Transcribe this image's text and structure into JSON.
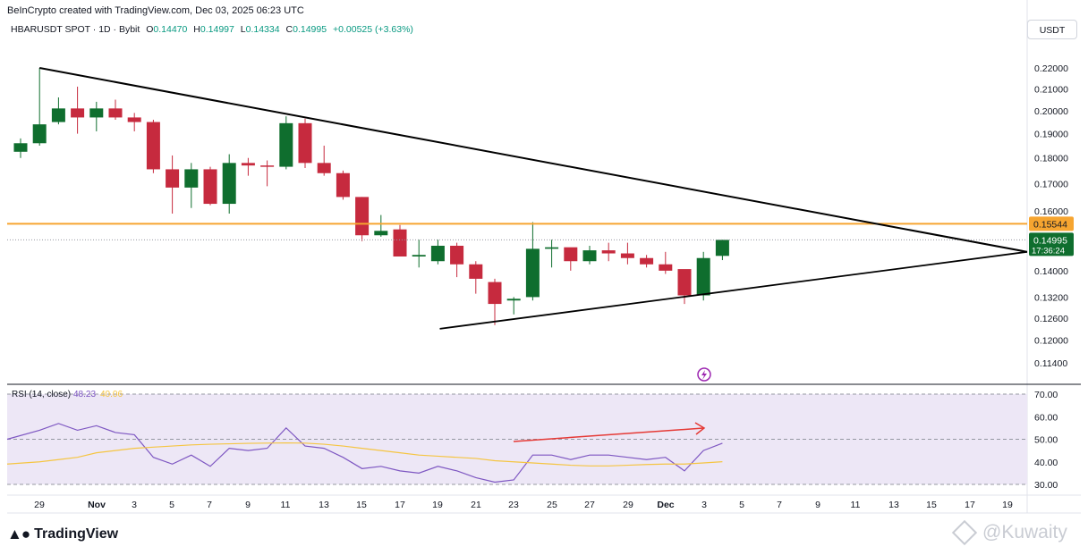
{
  "caption": "BeInCrypto created with TradingView.com, Dec 03, 2025 06:23 UTC",
  "legend": {
    "symbol": "HBARUSDT SPOT · 1D · Bybit",
    "open_label": "O",
    "open": "0.14470",
    "high_label": "H",
    "high": "0.14997",
    "low_label": "L",
    "low": "0.14334",
    "close_label": "C",
    "close": "0.14995",
    "change": "+0.00525 (+3.63%)"
  },
  "currency": "USDT",
  "price_axis": {
    "ticks": [
      "0.22000",
      "0.21000",
      "0.20000",
      "0.19000",
      "0.18000",
      "0.17000",
      "0.16000",
      "0.14000",
      "0.13200",
      "0.12600",
      "0.12000",
      "0.11400"
    ],
    "level_label": "0.15544",
    "last_price_label": "0.14995",
    "countdown": "17:36:24"
  },
  "rsi": {
    "title": "RSI (14, close)",
    "value": "48.23",
    "ma_value": "40.06",
    "ticks": [
      "70.00",
      "60.00",
      "50.00",
      "40.00",
      "30.00"
    ]
  },
  "x_axis": {
    "labels": [
      "29",
      "Nov",
      "3",
      "5",
      "7",
      "9",
      "11",
      "13",
      "15",
      "17",
      "19",
      "21",
      "23",
      "25",
      "27",
      "29",
      "Dec",
      "3",
      "5",
      "7",
      "9",
      "11",
      "13",
      "15",
      "17",
      "19"
    ]
  },
  "colors": {
    "up": "#0f6e2e",
    "down": "#c62a3e",
    "resistance": "#f6a530",
    "rsi_line": "#7e57c2",
    "rsi_ma": "#f5c542",
    "rsi_band": "#ede7f6",
    "divergence_arrow": "#e53935",
    "last_price_bg": "#0f6e2e"
  },
  "chart_data": {
    "type": "candlestick",
    "symbol": "HBARUSDT",
    "interval": "1D",
    "x": [
      "Oct 27",
      "Oct 28",
      "Oct 29",
      "Oct 30",
      "Oct 31",
      "Nov 1",
      "Nov 2",
      "Nov 3",
      "Nov 4",
      "Nov 5",
      "Nov 6",
      "Nov 7",
      "Nov 8",
      "Nov 9",
      "Nov 10",
      "Nov 11",
      "Nov 12",
      "Nov 13",
      "Nov 14",
      "Nov 15",
      "Nov 16",
      "Nov 17",
      "Nov 18",
      "Nov 19",
      "Nov 20",
      "Nov 21",
      "Nov 22",
      "Nov 23",
      "Nov 24",
      "Nov 25",
      "Nov 26",
      "Nov 27",
      "Nov 28",
      "Nov 29",
      "Nov 30",
      "Dec 1",
      "Dec 2",
      "Dec 3"
    ],
    "ohlc": [
      [
        0.1825,
        0.188,
        0.18,
        0.186
      ],
      [
        0.186,
        0.22,
        0.185,
        0.194
      ],
      [
        0.195,
        0.206,
        0.194,
        0.201
      ],
      [
        0.201,
        0.211,
        0.19,
        0.197
      ],
      [
        0.197,
        0.204,
        0.191,
        0.201
      ],
      [
        0.201,
        0.205,
        0.196,
        0.197
      ],
      [
        0.197,
        0.199,
        0.191,
        0.195
      ],
      [
        0.195,
        0.196,
        0.174,
        0.1755
      ],
      [
        0.1755,
        0.181,
        0.159,
        0.1685
      ],
      [
        0.1685,
        0.178,
        0.161,
        0.1755
      ],
      [
        0.1755,
        0.1765,
        0.162,
        0.1625
      ],
      [
        0.1625,
        0.1815,
        0.159,
        0.178
      ],
      [
        0.178,
        0.18,
        0.173,
        0.177
      ],
      [
        0.177,
        0.179,
        0.169,
        0.1765
      ],
      [
        0.1765,
        0.1975,
        0.1755,
        0.1945
      ],
      [
        0.1945,
        0.1965,
        0.176,
        0.178
      ],
      [
        0.178,
        0.185,
        0.173,
        0.174
      ],
      [
        0.174,
        0.175,
        0.164,
        0.165
      ],
      [
        0.165,
        0.165,
        0.1495,
        0.1515
      ],
      [
        0.1515,
        0.1585,
        0.151,
        0.153
      ],
      [
        0.1535,
        0.155,
        0.145,
        0.1445
      ],
      [
        0.1445,
        0.15,
        0.141,
        0.145
      ],
      [
        0.143,
        0.15,
        0.142,
        0.148
      ],
      [
        0.148,
        0.149,
        0.138,
        0.142
      ],
      [
        0.142,
        0.143,
        0.133,
        0.1375
      ],
      [
        0.1365,
        0.1375,
        0.124,
        0.13
      ],
      [
        0.131,
        0.132,
        0.127,
        0.1315
      ],
      [
        0.132,
        0.156,
        0.131,
        0.147
      ],
      [
        0.147,
        0.15,
        0.141,
        0.1475
      ],
      [
        0.1475,
        0.147,
        0.14,
        0.143
      ],
      [
        0.143,
        0.148,
        0.142,
        0.1465
      ],
      [
        0.1465,
        0.149,
        0.143,
        0.1455
      ],
      [
        0.1455,
        0.149,
        0.142,
        0.144
      ],
      [
        0.144,
        0.145,
        0.141,
        0.142
      ],
      [
        0.142,
        0.146,
        0.139,
        0.14
      ],
      [
        0.1405,
        0.14,
        0.13,
        0.1325
      ],
      [
        0.1325,
        0.146,
        0.131,
        0.144
      ],
      [
        0.1447,
        0.14997,
        0.14334,
        0.14995
      ]
    ],
    "resistance_level": 0.15544,
    "last_price": 0.14995,
    "rsi_values": [
      50,
      54,
      57,
      54,
      56,
      53,
      52,
      42,
      39,
      43,
      38,
      46,
      45,
      46,
      55,
      47,
      46,
      42,
      37,
      38,
      36,
      35,
      38,
      36,
      33,
      31,
      32,
      43,
      43,
      41,
      43,
      43,
      42,
      41,
      42,
      36,
      45,
      48.23
    ],
    "rsi_ma_values": [
      39,
      40,
      41,
      42,
      44,
      45,
      46,
      46.5,
      47,
      47.5,
      47.8,
      48,
      48.2,
      48.3,
      48.4,
      48.3,
      47.8,
      47,
      46,
      45,
      44,
      43,
      42.5,
      42,
      41.5,
      40.5,
      40,
      39.5,
      39,
      38.5,
      38.2,
      38.2,
      38.5,
      38.8,
      39,
      39,
      39.5,
      40.06
    ],
    "rsi_levels": [
      70,
      50,
      30
    ],
    "ylim": [
      0.11,
      0.225
    ],
    "rsi_ylim": [
      28,
      72
    ]
  }
}
